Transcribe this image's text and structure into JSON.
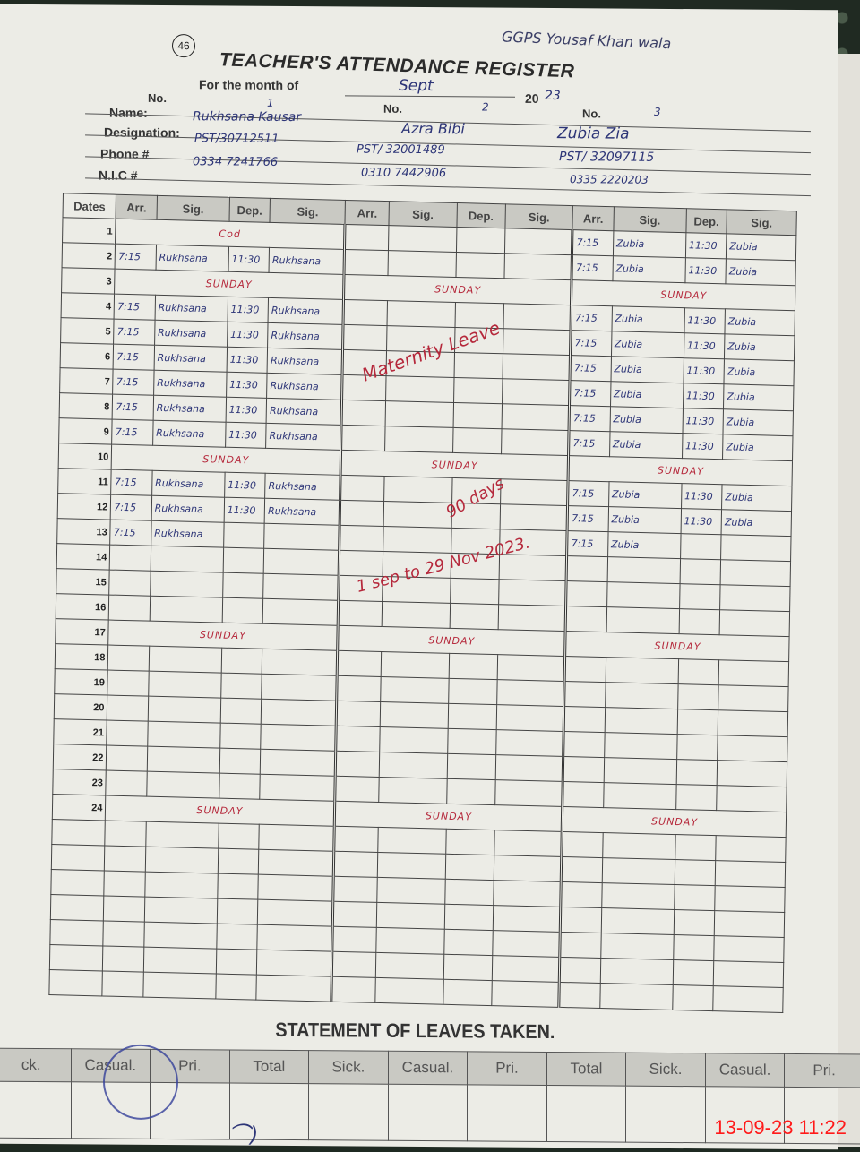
{
  "page_number": "46",
  "school": "GGPS Yousaf Khan wala",
  "title": "TEACHER'S ATTENDANCE REGISTER",
  "month_label": "For the month of",
  "month": "Sept",
  "year_prefix": "20",
  "year_suffix": "23",
  "labels": {
    "no": "No.",
    "name": "Name:",
    "designation": "Designation:",
    "phone": "Phone #",
    "nic": "N.I.C #"
  },
  "columns": {
    "dates": "Dates",
    "arr": "Arr.",
    "sig": "Sig.",
    "dep": "Dep."
  },
  "teachers": [
    {
      "no": "1",
      "name": "Rukhsana Kausar",
      "designation": "PST/30712511",
      "phone": "0334 7241766",
      "entries": {
        "1": {
          "note": "Cod"
        },
        "2": [
          "7:15",
          "Rukhsana",
          "11:30",
          "Rukhsana"
        ],
        "3": {
          "note": "SUNDAY"
        },
        "4": [
          "7:15",
          "Rukhsana",
          "11:30",
          "Rukhsana"
        ],
        "5": [
          "7:15",
          "Rukhsana",
          "11:30",
          "Rukhsana"
        ],
        "6": [
          "7:15",
          "Rukhsana",
          "11:30",
          "Rukhsana"
        ],
        "7": [
          "7:15",
          "Rukhsana",
          "11:30",
          "Rukhsana"
        ],
        "8": [
          "7:15",
          "Rukhsana",
          "11:30",
          "Rukhsana"
        ],
        "9": [
          "7:15",
          "Rukhsana",
          "11:30",
          "Rukhsana"
        ],
        "10": {
          "note": "SUNDAY"
        },
        "11": [
          "7:15",
          "Rukhsana",
          "11:30",
          "Rukhsana"
        ],
        "12": [
          "7:15",
          "Rukhsana",
          "11:30",
          "Rukhsana"
        ],
        "13": [
          "7:15",
          "Rukhsana",
          "",
          ""
        ],
        "17": {
          "note": "SUNDAY"
        },
        "24": {
          "note": "SUNDAY"
        }
      }
    },
    {
      "no": "2",
      "name": "Azra Bibi",
      "designation": "PST/ 32001489",
      "phone": "0310 7442906",
      "entries": {
        "3": {
          "note": "SUNDAY"
        },
        "10": {
          "note": "SUNDAY"
        },
        "17": {
          "note": "SUNDAY"
        },
        "24": {
          "note": "SUNDAY"
        }
      },
      "leave_note": {
        "line1": "Maternity Leave",
        "line2": "90 days",
        "line3": "1 sep to 29 Nov 2023."
      }
    },
    {
      "no": "3",
      "name": "Zubia Zia",
      "designation": "PST/ 32097115",
      "phone": "0335 2220203",
      "entries": {
        "1": [
          "7:15",
          "Zubia",
          "11:30",
          "Zubia"
        ],
        "2": [
          "7:15",
          "Zubia",
          "11:30",
          "Zubia"
        ],
        "3": {
          "note": "SUNDAY"
        },
        "4": [
          "7:15",
          "Zubia",
          "11:30",
          "Zubia"
        ],
        "5": [
          "7:15",
          "Zubia",
          "11:30",
          "Zubia"
        ],
        "6": [
          "7:15",
          "Zubia",
          "11:30",
          "Zubia"
        ],
        "7": [
          "7:15",
          "Zubia",
          "11:30",
          "Zubia"
        ],
        "8": [
          "7:15",
          "Zubia",
          "11:30",
          "Zubia"
        ],
        "9": [
          "7:15",
          "Zubia",
          "11:30",
          "Zubia"
        ],
        "10": {
          "note": "SUNDAY"
        },
        "11": [
          "7:15",
          "Zubia",
          "11:30",
          "Zubia"
        ],
        "12": [
          "7:15",
          "Zubia",
          "11:30",
          "Zubia"
        ],
        "13": [
          "7:15",
          "Zubia",
          "",
          ""
        ],
        "17": {
          "note": "SUNDAY"
        },
        "24": {
          "note": "SUNDAY"
        }
      }
    }
  ],
  "dates": [
    "1",
    "2",
    "3",
    "4",
    "5",
    "6",
    "7",
    "8",
    "9",
    "10",
    "11",
    "12",
    "13",
    "14",
    "15",
    "16",
    "17",
    "18",
    "19",
    "20",
    "21",
    "22",
    "23",
    "24"
  ],
  "leave_statement": {
    "title": "STATEMENT OF LEAVES TAKEN.",
    "headers": [
      "ck.",
      "Casual.",
      "Pri.",
      "Total",
      "Sick.",
      "Casual.",
      "Pri.",
      "Total",
      "Sick.",
      "Casual.",
      "Pri."
    ]
  },
  "timestamp": "13-09-23  11:22",
  "colors": {
    "ink_blue": "#2d3577",
    "ink_red": "#b5283b",
    "paper": "#ecece6",
    "timestamp": "#ff1a1a"
  }
}
